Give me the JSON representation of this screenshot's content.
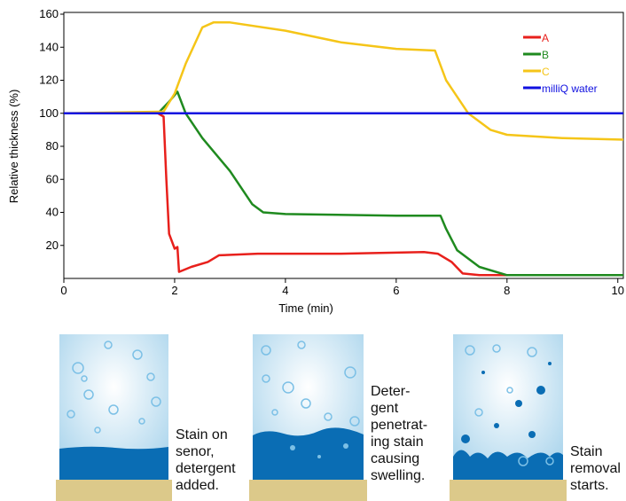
{
  "chart_data": {
    "type": "line",
    "xlabel": "Time (min)",
    "ylabel": "Relative thickness (%)",
    "xlim": [
      0,
      10.1
    ],
    "ylim": [
      0,
      160
    ],
    "xticks": [
      0,
      2,
      4,
      6,
      8,
      10
    ],
    "yticks": [
      20,
      40,
      60,
      80,
      100,
      120,
      140,
      160
    ],
    "legend": "upper right",
    "series": [
      {
        "name": "A",
        "color": "#e8201c",
        "x": [
          0,
          1.7,
          1.8,
          1.85,
          1.9,
          2.0,
          2.05,
          2.08,
          2.3,
          2.6,
          2.8,
          3.5,
          5,
          6.5,
          6.75,
          7.0,
          7.2,
          7.5,
          10.1
        ],
        "values": [
          100,
          100,
          98,
          60,
          27,
          18,
          19,
          4,
          7,
          10,
          14,
          15,
          15,
          16,
          15,
          10,
          3,
          2,
          2
        ]
      },
      {
        "name": "B",
        "color": "#1f8a1f",
        "x": [
          0,
          1.7,
          1.9,
          2.05,
          2.2,
          2.5,
          3,
          3.4,
          3.6,
          4,
          6,
          6.8,
          6.9,
          7.1,
          7.5,
          8,
          10.1
        ],
        "values": [
          100,
          100,
          107,
          113,
          100,
          85,
          65,
          45,
          40,
          39,
          38,
          38,
          30,
          17,
          7,
          2,
          2
        ]
      },
      {
        "name": "C",
        "color": "#f5c518",
        "x": [
          0,
          1.8,
          2.0,
          2.2,
          2.5,
          2.7,
          3.0,
          4,
          5,
          6,
          6.7,
          6.9,
          7.3,
          7.7,
          8,
          9,
          10.1
        ],
        "values": [
          100,
          101,
          112,
          130,
          152,
          155,
          155,
          150,
          143,
          139,
          138,
          120,
          100,
          90,
          87,
          85,
          84
        ]
      },
      {
        "name": "milliQ water",
        "color": "#1010e0",
        "x": [
          0,
          10.1
        ],
        "values": [
          100,
          100
        ]
      }
    ]
  },
  "panels": [
    {
      "caption": "Stain on senor, detergent added."
    },
    {
      "caption": "Deter-gent penetrat-ing stain causing swelling."
    },
    {
      "caption": "Stain removal starts."
    }
  ]
}
